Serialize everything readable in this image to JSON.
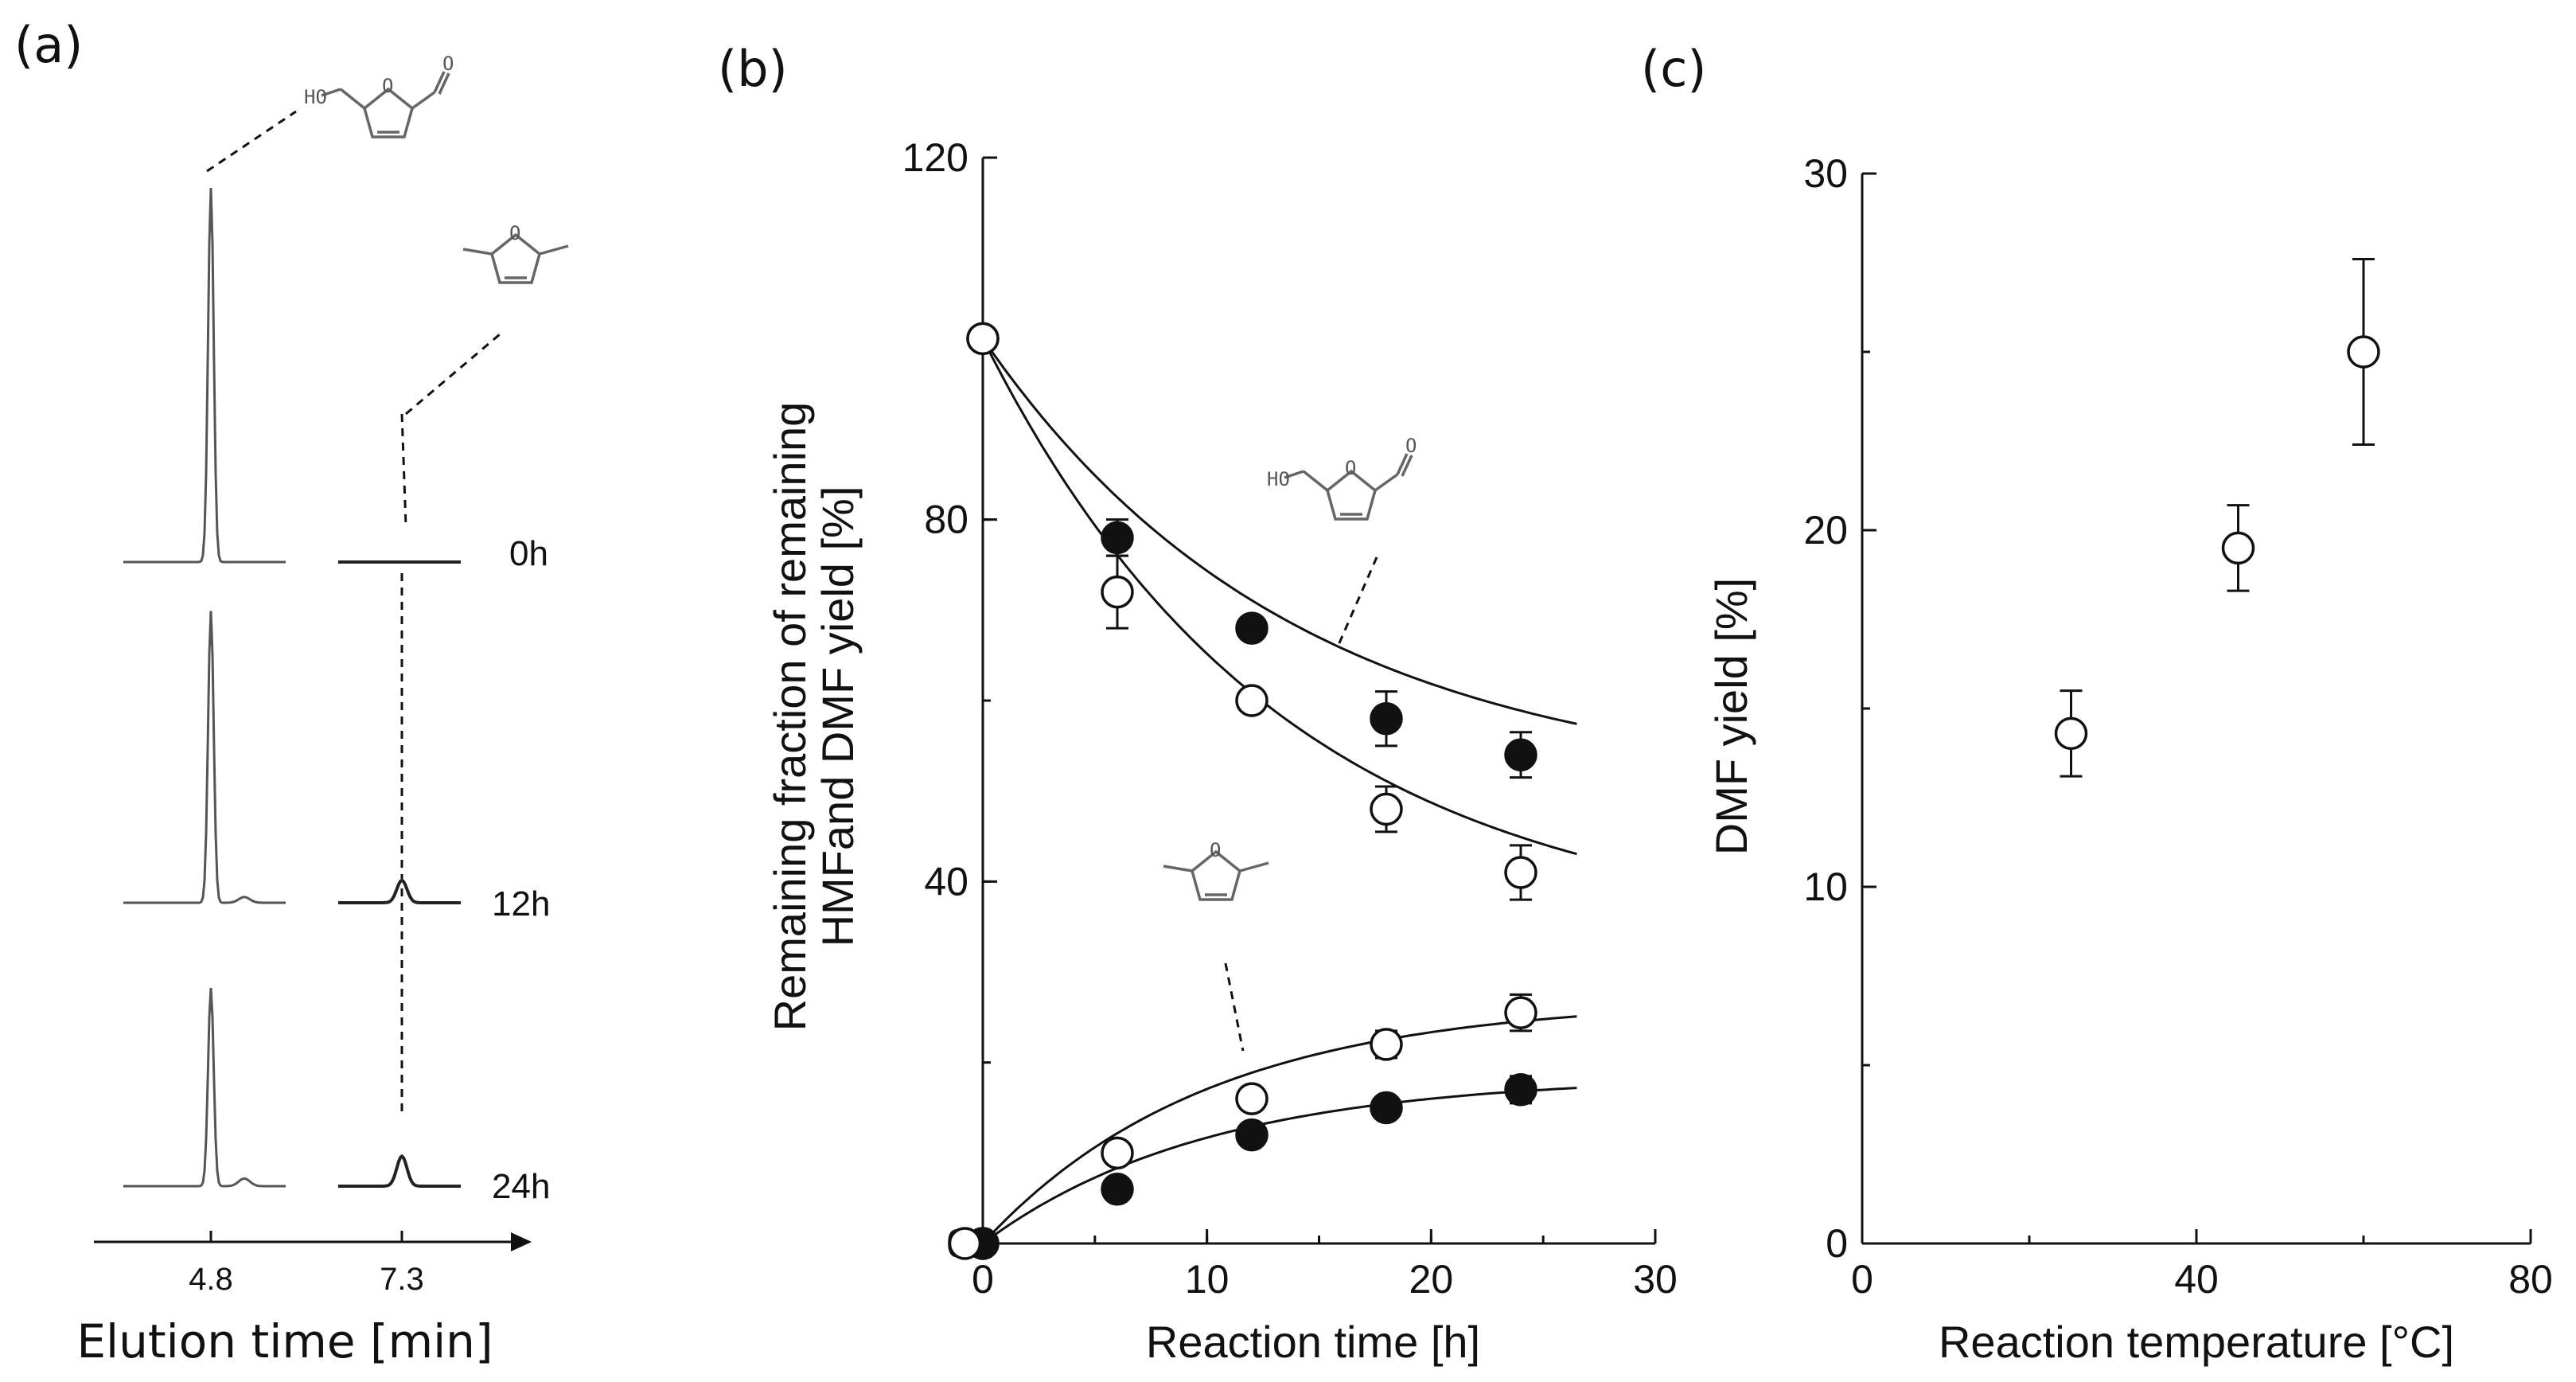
{
  "panels": {
    "a": "(a)",
    "b": "(b)",
    "c": "(c)"
  },
  "chart_data": [
    {
      "type": "line",
      "title": "",
      "xlabel": "Elution time [min]",
      "x_ticks": [
        "4.8",
        "7.3"
      ],
      "traces": [
        {
          "label": "0h",
          "peak_hmf_relative": 1.0,
          "peak_dmf_relative": 0.0
        },
        {
          "label": "12h",
          "peak_hmf_relative": 0.78,
          "peak_dmf_relative": 0.06
        },
        {
          "label": "24h",
          "peak_hmf_relative": 0.53,
          "peak_dmf_relative": 0.08
        }
      ],
      "structures": [
        {
          "name": "HMF",
          "label": "HO"
        },
        {
          "name": "DMF"
        }
      ]
    },
    {
      "type": "scatter",
      "title": "",
      "xlabel": "Reaction time [h]",
      "ylabel_lines": [
        "Remaining fraction of remaining",
        "HMFand DMF yield [%]"
      ],
      "xlim": [
        0,
        30
      ],
      "ylim": [
        0,
        120
      ],
      "x_ticks": [
        0,
        10,
        20,
        30
      ],
      "y_ticks": [
        0,
        40,
        80,
        120
      ],
      "series": [
        {
          "name": "HMF remaining (filled)",
          "marker": "filled",
          "x": [
            0,
            6,
            12,
            18,
            24
          ],
          "y": [
            100,
            78,
            68,
            58,
            54
          ],
          "err": [
            0,
            2,
            1,
            3,
            2.5
          ],
          "fit": {
            "type": "decay",
            "a": 50,
            "k": 0.072,
            "xmax": 26.5
          }
        },
        {
          "name": "HMF remaining (open)",
          "marker": "open",
          "x": [
            0,
            6,
            12,
            18,
            24
          ],
          "y": [
            100,
            72,
            60,
            48,
            41
          ],
          "err": [
            0,
            4,
            1,
            2.5,
            3
          ],
          "fit": {
            "type": "decay",
            "a": 34,
            "k": 0.075,
            "xmax": 26.5
          }
        },
        {
          "name": "DMF yield (open)",
          "marker": "open",
          "x": [
            0,
            6,
            12,
            18,
            24
          ],
          "y": [
            0,
            10,
            16,
            22,
            25.5
          ],
          "err": [
            0,
            1,
            1,
            1.5,
            2
          ],
          "fit": {
            "type": "rise",
            "a": 27,
            "k": 0.1,
            "xmax": 26.5
          }
        },
        {
          "name": "DMF yield (filled)",
          "marker": "filled",
          "x": [
            0,
            6,
            12,
            18,
            24
          ],
          "y": [
            0,
            6,
            12,
            15,
            17
          ],
          "err": [
            0,
            1,
            1,
            1,
            1.5
          ],
          "fit": {
            "type": "rise",
            "a": 18.5,
            "k": 0.1,
            "xmax": 26.5
          }
        }
      ],
      "extra_point": {
        "x": -0.8,
        "y": 0
      }
    },
    {
      "type": "scatter",
      "title": "",
      "xlabel": "Reaction temperature [°C]",
      "ylabel": "DMF yield [%]",
      "xlim": [
        0,
        80
      ],
      "ylim": [
        0,
        30
      ],
      "x_ticks": [
        0,
        40,
        80
      ],
      "y_ticks": [
        0,
        10,
        20,
        30
      ],
      "series": [
        {
          "name": "DMF yield",
          "marker": "open",
          "x": [
            25,
            45,
            60
          ],
          "y": [
            14.3,
            19.5,
            25
          ],
          "err": [
            1.2,
            1.2,
            2.6
          ]
        }
      ]
    }
  ]
}
